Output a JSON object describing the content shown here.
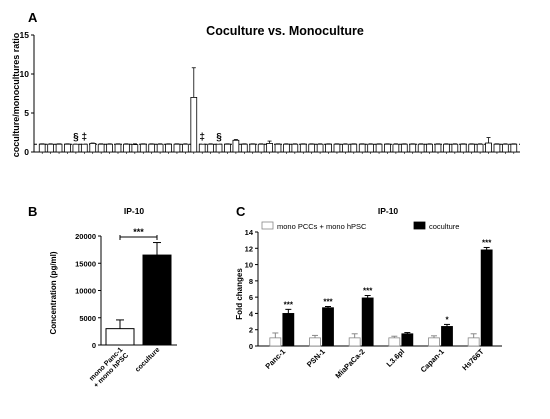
{
  "panels": {
    "A": {
      "letter": "A"
    },
    "B": {
      "letter": "B"
    },
    "C": {
      "letter": "C"
    }
  },
  "colors": {
    "open_bar": "#ffffff",
    "filled_bar": "#000000",
    "axis": "#000000"
  },
  "chart_data": [
    {
      "panel": "A",
      "type": "bar",
      "title": "Coculture vs. Monoculture",
      "ylabel": "coculture/monocultures ratio",
      "ylim": [
        0,
        15
      ],
      "yticks": [
        0,
        5,
        10,
        15
      ],
      "reference_line": 1,
      "values": [
        1,
        1,
        1,
        1,
        1,
        1,
        1.1,
        1,
        1,
        1,
        1,
        0.95,
        1,
        1,
        1,
        1,
        1,
        1,
        7,
        1,
        1,
        1,
        1,
        1.5,
        1,
        1,
        1,
        1.1,
        1,
        1,
        1,
        1,
        1,
        1,
        1,
        1,
        1,
        1,
        1,
        1,
        1,
        1,
        1,
        1,
        1,
        1,
        1,
        1,
        1,
        1,
        1,
        1,
        1,
        1.15,
        1,
        1,
        1
      ],
      "errors": [
        0.05,
        0.05,
        0.05,
        0.05,
        0,
        0,
        0.05,
        0.05,
        0.05,
        0.05,
        0.05,
        0.1,
        0.05,
        0.05,
        0.05,
        0.05,
        0.05,
        0.05,
        3.8,
        0,
        0.05,
        0,
        0.05,
        0.1,
        0.05,
        0.05,
        0.05,
        0.3,
        0.05,
        0.05,
        0.05,
        0.05,
        0.05,
        0.05,
        0.05,
        0.05,
        0.05,
        0.05,
        0.05,
        0.05,
        0.05,
        0.05,
        0.05,
        0.05,
        0.05,
        0.05,
        0.05,
        0.05,
        0.05,
        0.05,
        0.05,
        0.05,
        0.05,
        0.7,
        0.05,
        0.05,
        0.05
      ],
      "symbols": [
        {
          "index": 4,
          "mark": "§"
        },
        {
          "index": 5,
          "mark": "‡"
        },
        {
          "index": 19,
          "mark": "‡"
        },
        {
          "index": 21,
          "mark": "§"
        }
      ]
    },
    {
      "panel": "B",
      "type": "bar",
      "title": "IP-10",
      "ylabel": "Concentration (pg/ml)",
      "ylim": [
        0,
        20000
      ],
      "yticks": [
        0,
        5000,
        10000,
        15000,
        20000
      ],
      "categories": [
        "mono Panc-1\n+ mono hPSC",
        "coculture"
      ],
      "values": [
        3000,
        16500
      ],
      "errors": [
        1600,
        2300
      ],
      "significance": "***"
    },
    {
      "panel": "C",
      "type": "bar",
      "title": "IP-10",
      "ylabel": "Fold changes",
      "ylim": [
        0,
        14
      ],
      "yticks": [
        0,
        2,
        4,
        6,
        8,
        10,
        12,
        14
      ],
      "categories": [
        "Panc-1",
        "PSN-1",
        "MiaPaCa-2",
        "L3.6pl",
        "Capan-1",
        "Hs766T"
      ],
      "series": [
        {
          "name": "mono PCCs + mono hPSC",
          "values": [
            1,
            1,
            1,
            1,
            1,
            1
          ],
          "errors": [
            0.6,
            0.3,
            0.5,
            0.2,
            0.25,
            0.5
          ]
        },
        {
          "name": "coculture",
          "values": [
            4.0,
            4.7,
            5.9,
            1.5,
            2.4,
            11.8
          ],
          "errors": [
            0.5,
            0.15,
            0.3,
            0.15,
            0.25,
            0.3
          ]
        }
      ],
      "significance": [
        "***",
        "***",
        "***",
        "",
        "*",
        "***"
      ]
    }
  ]
}
